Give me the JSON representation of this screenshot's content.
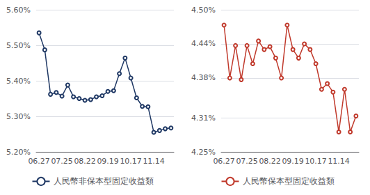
{
  "chart_data": [
    {
      "type": "line",
      "categories": [
        "06.27",
        null,
        null,
        null,
        "07.25",
        null,
        null,
        null,
        "08.22",
        null,
        null,
        null,
        "09.19",
        null,
        null,
        null,
        "10.17",
        null,
        null,
        null,
        "11.14",
        null,
        null,
        null
      ],
      "series": [
        {
          "name": "人民幣非保本型固定收益類",
          "color": "#1f3864",
          "values": [
            5.535,
            5.487,
            5.362,
            5.367,
            5.357,
            5.388,
            5.355,
            5.35,
            5.345,
            5.347,
            5.355,
            5.358,
            5.37,
            5.372,
            5.42,
            5.464,
            5.408,
            5.352,
            5.328,
            5.327,
            5.255,
            5.26,
            5.265,
            5.267
          ]
        }
      ],
      "ylim": [
        5.2,
        5.6
      ],
      "yticks": [
        {
          "value": 5.2,
          "label": "5.20%"
        },
        {
          "value": 5.3,
          "label": "5.30%"
        },
        {
          "value": 5.4,
          "label": "5.40%"
        },
        {
          "value": 5.5,
          "label": "5.50%"
        },
        {
          "value": 5.6,
          "label": "5.60%"
        }
      ],
      "grid": true,
      "legend": "bottom",
      "marker": "circle"
    },
    {
      "type": "line",
      "categories": [
        "06.27",
        null,
        null,
        null,
        "07.25",
        null,
        null,
        null,
        "08.22",
        null,
        null,
        null,
        "09.19",
        null,
        null,
        null,
        "10.17",
        null,
        null,
        null,
        "11.14",
        null,
        null,
        null
      ],
      "series": [
        {
          "name": "人民幣保本型固定收益類",
          "color": "#c0392b",
          "values": [
            4.473,
            4.38,
            4.437,
            4.377,
            4.437,
            4.405,
            4.445,
            4.43,
            4.435,
            4.415,
            4.38,
            4.473,
            4.43,
            4.415,
            4.44,
            4.43,
            4.405,
            4.36,
            4.37,
            4.355,
            4.285,
            4.36,
            4.285,
            4.313
          ]
        }
      ],
      "ylim": [
        4.25,
        4.5
      ],
      "yticks": [
        {
          "value": 4.25,
          "label": "4.25%"
        },
        {
          "value": 4.31,
          "label": "4.31%"
        },
        {
          "value": 4.38,
          "label": "4.38%"
        },
        {
          "value": 4.44,
          "label": "4.44%"
        },
        {
          "value": 4.5,
          "label": "4.50%"
        }
      ],
      "grid": true,
      "legend": "bottom",
      "marker": "circle"
    }
  ]
}
